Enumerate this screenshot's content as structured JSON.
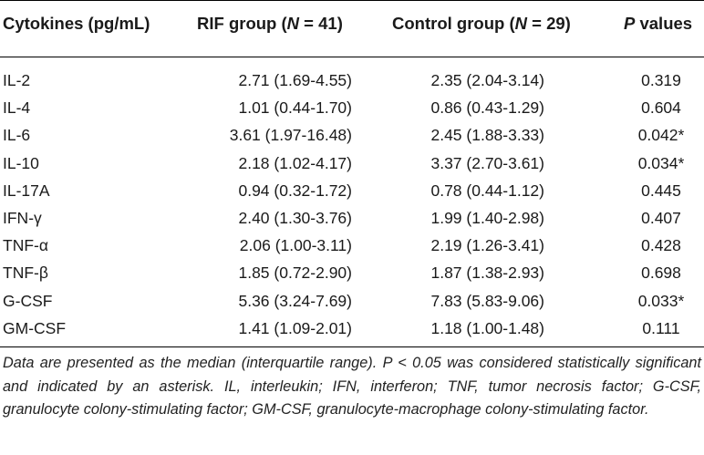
{
  "table": {
    "headers": {
      "cytokines": "Cytokines (pg/mL)",
      "rif_prefix": "RIF group (",
      "rif_n": "N",
      "rif_suffix": " = 41)",
      "control_prefix": "Control group (",
      "control_n": "N",
      "control_suffix": " = 29)",
      "p_italic": "P",
      "p_rest": " values"
    },
    "rows": [
      {
        "cytokine": "IL-2",
        "rif": "2.71 (1.69-4.55)",
        "control": "2.35 (2.04-3.14)",
        "p": "0.319"
      },
      {
        "cytokine": "IL-4",
        "rif": "1.01 (0.44-1.70)",
        "control": "0.86 (0.43-1.29)",
        "p": "0.604"
      },
      {
        "cytokine": "IL-6",
        "rif": "3.61 (1.97-16.48)",
        "control": "2.45 (1.88-3.33)",
        "p": "0.042*"
      },
      {
        "cytokine": "IL-10",
        "rif": "2.18 (1.02-4.17)",
        "control": "3.37 (2.70-3.61)",
        "p": "0.034*"
      },
      {
        "cytokine": "IL-17A",
        "rif": "0.94 (0.32-1.72)",
        "control": "0.78 (0.44-1.12)",
        "p": "0.445"
      },
      {
        "cytokine": "IFN-γ",
        "rif": "2.40 (1.30-3.76)",
        "control": "1.99 (1.40-2.98)",
        "p": "0.407"
      },
      {
        "cytokine": "TNF-α",
        "rif": "2.06 (1.00-3.11)",
        "control": "2.19 (1.26-3.41)",
        "p": "0.428"
      },
      {
        "cytokine": "TNF-β",
        "rif": "1.85 (0.72-2.90)",
        "control": "1.87 (1.38-2.93)",
        "p": "0.698"
      },
      {
        "cytokine": "G-CSF",
        "rif": "5.36 (3.24-7.69)",
        "control": "7.83 (5.83-9.06)",
        "p": "0.033*"
      },
      {
        "cytokine": "GM-CSF",
        "rif": "1.41 (1.09-2.01)",
        "control": "1.18 (1.00-1.48)",
        "p": "0.111"
      }
    ],
    "footnote": "Data are presented as the median (interquartile range). P < 0.05 was considered statistically significant and indicated by an asterisk. IL, interleukin; IFN, interferon; TNF, tumor necrosis factor; G-CSF, granulocyte colony-stimulating factor; GM-CSF, granulocyte-macrophage colony-stimulating factor."
  }
}
